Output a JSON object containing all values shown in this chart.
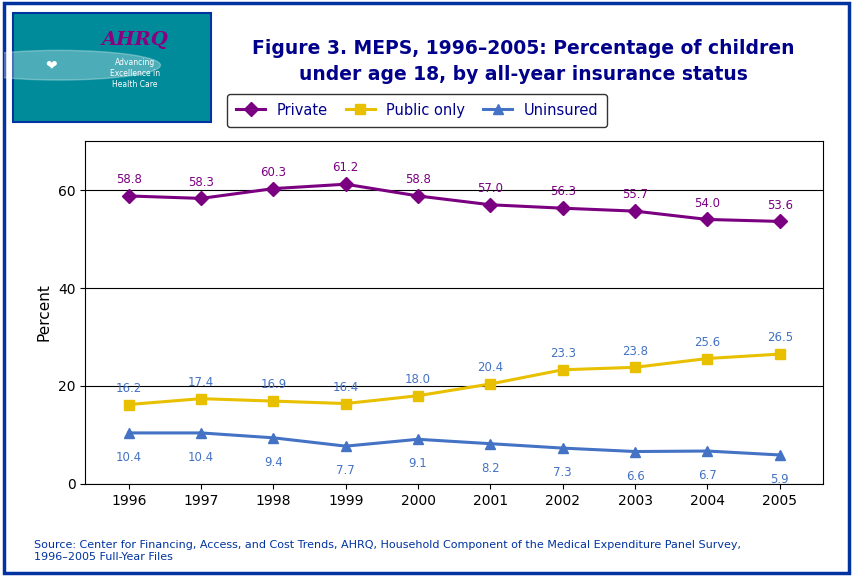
{
  "years": [
    1996,
    1997,
    1998,
    1999,
    2000,
    2001,
    2002,
    2003,
    2004,
    2005
  ],
  "private": [
    58.8,
    58.3,
    60.3,
    61.2,
    58.8,
    57.0,
    56.3,
    55.7,
    54.0,
    53.6
  ],
  "public_only": [
    16.2,
    17.4,
    16.9,
    16.4,
    18.0,
    20.4,
    23.3,
    23.8,
    25.6,
    26.5
  ],
  "uninsured": [
    10.4,
    10.4,
    9.4,
    7.7,
    9.1,
    8.2,
    7.3,
    6.6,
    6.7,
    5.9
  ],
  "private_color": "#7B0081",
  "public_color": "#E8C000",
  "uninsured_color": "#4472C4",
  "label_color_private": "#7B0081",
  "label_color_public": "#4472C4",
  "label_color_uninsured": "#4472C4",
  "title_line1": "Figure 3. MEPS, 1996–2005: Percentage of children",
  "title_line2": "under age 18, by all-year insurance status",
  "ylabel": "Percent",
  "ylim": [
    0,
    70
  ],
  "yticks": [
    0,
    20,
    40,
    60
  ],
  "source_text": "Source: Center for Financing, Access, and Cost Trends, AHRQ, Household Component of the Medical Expenditure Panel Survey,\n1996–2005 Full-Year Files",
  "legend_labels": [
    "Private",
    "Public only",
    "Uninsured"
  ],
  "header_bar_color": "#0033A0",
  "outer_border_color": "#0033A0",
  "bg_color": "#FFFFFF",
  "title_color": "#00008B",
  "source_color": "#0033A0"
}
